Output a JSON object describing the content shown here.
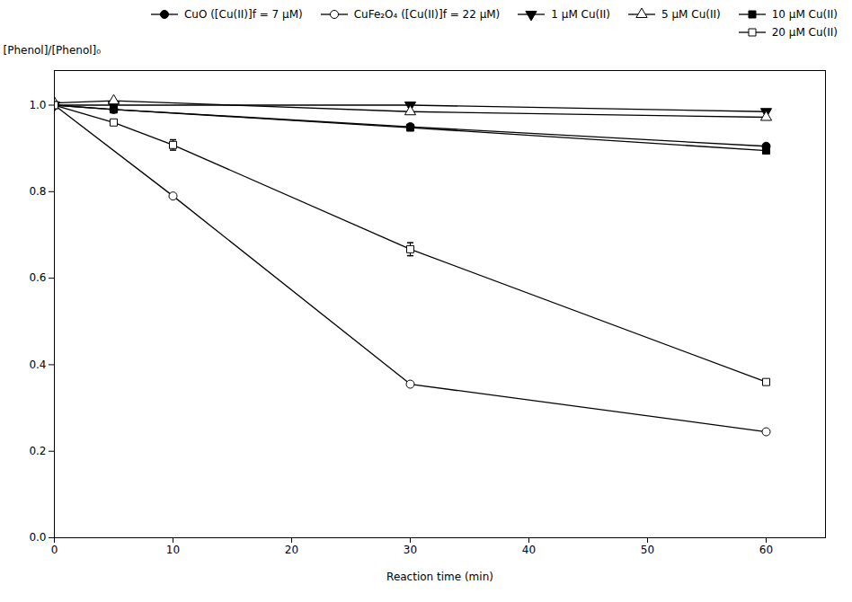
{
  "chart_data": {
    "type": "line",
    "xlabel": "Reaction time (min)",
    "ylabel": "[Phenol]/[Phenol]₀",
    "xlim": [
      0,
      65
    ],
    "ylim": [
      0.0,
      1.08
    ],
    "xticks": [
      0,
      10,
      20,
      30,
      40,
      50,
      60
    ],
    "yticks": [
      {
        "value": 0.0,
        "label": "0.0"
      },
      0.2,
      0.4,
      0.6,
      0.8,
      {
        "value": 1.0,
        "label": "1.0"
      }
    ],
    "grid": false,
    "legend": "upper right",
    "series": [
      {
        "name": "CuO ([Cu(II)]f = 7 μM)",
        "color": "black",
        "marker": "circle",
        "line_style": "solid",
        "x": [
          0,
          5,
          30,
          60
        ],
        "values": [
          1.0,
          0.99,
          0.95,
          0.905
        ]
      },
      {
        "name": "CuFe₂O₄ ([Cu(II)]f = 22 μM)",
        "color": "black",
        "marker": "circle-open",
        "line_style": "solid",
        "x": [
          0,
          10,
          30,
          60
        ],
        "values": [
          1.0,
          0.79,
          0.355,
          0.245
        ]
      },
      {
        "name": "1 μM Cu(II)",
        "color": "black",
        "marker": "triangle-down",
        "line_style": "solid",
        "x": [
          0,
          5,
          30,
          60
        ],
        "values": [
          1.0,
          1.0,
          1.0,
          0.985
        ]
      },
      {
        "name": "5 μM Cu(II)",
        "color": "black",
        "marker": "triangle-up-open",
        "line_style": "solid",
        "x": [
          0,
          5,
          30,
          60
        ],
        "values": [
          1.005,
          1.01,
          0.985,
          0.972
        ]
      },
      {
        "name": "10 μM Cu(II)",
        "color": "black",
        "marker": "square",
        "line_style": "solid",
        "x": [
          0,
          5,
          30,
          60
        ],
        "values": [
          1.0,
          0.99,
          0.948,
          0.895
        ]
      },
      {
        "name": "20 μM Cu(II)",
        "color": "black",
        "marker": "square-open",
        "line_style": "solid",
        "x": [
          0,
          5,
          10,
          30,
          60
        ],
        "values": [
          1.0,
          0.96,
          0.908,
          0.667,
          0.36
        ],
        "errors": [
          0.0,
          0.0,
          0.012,
          0.015,
          0.0
        ]
      }
    ]
  }
}
